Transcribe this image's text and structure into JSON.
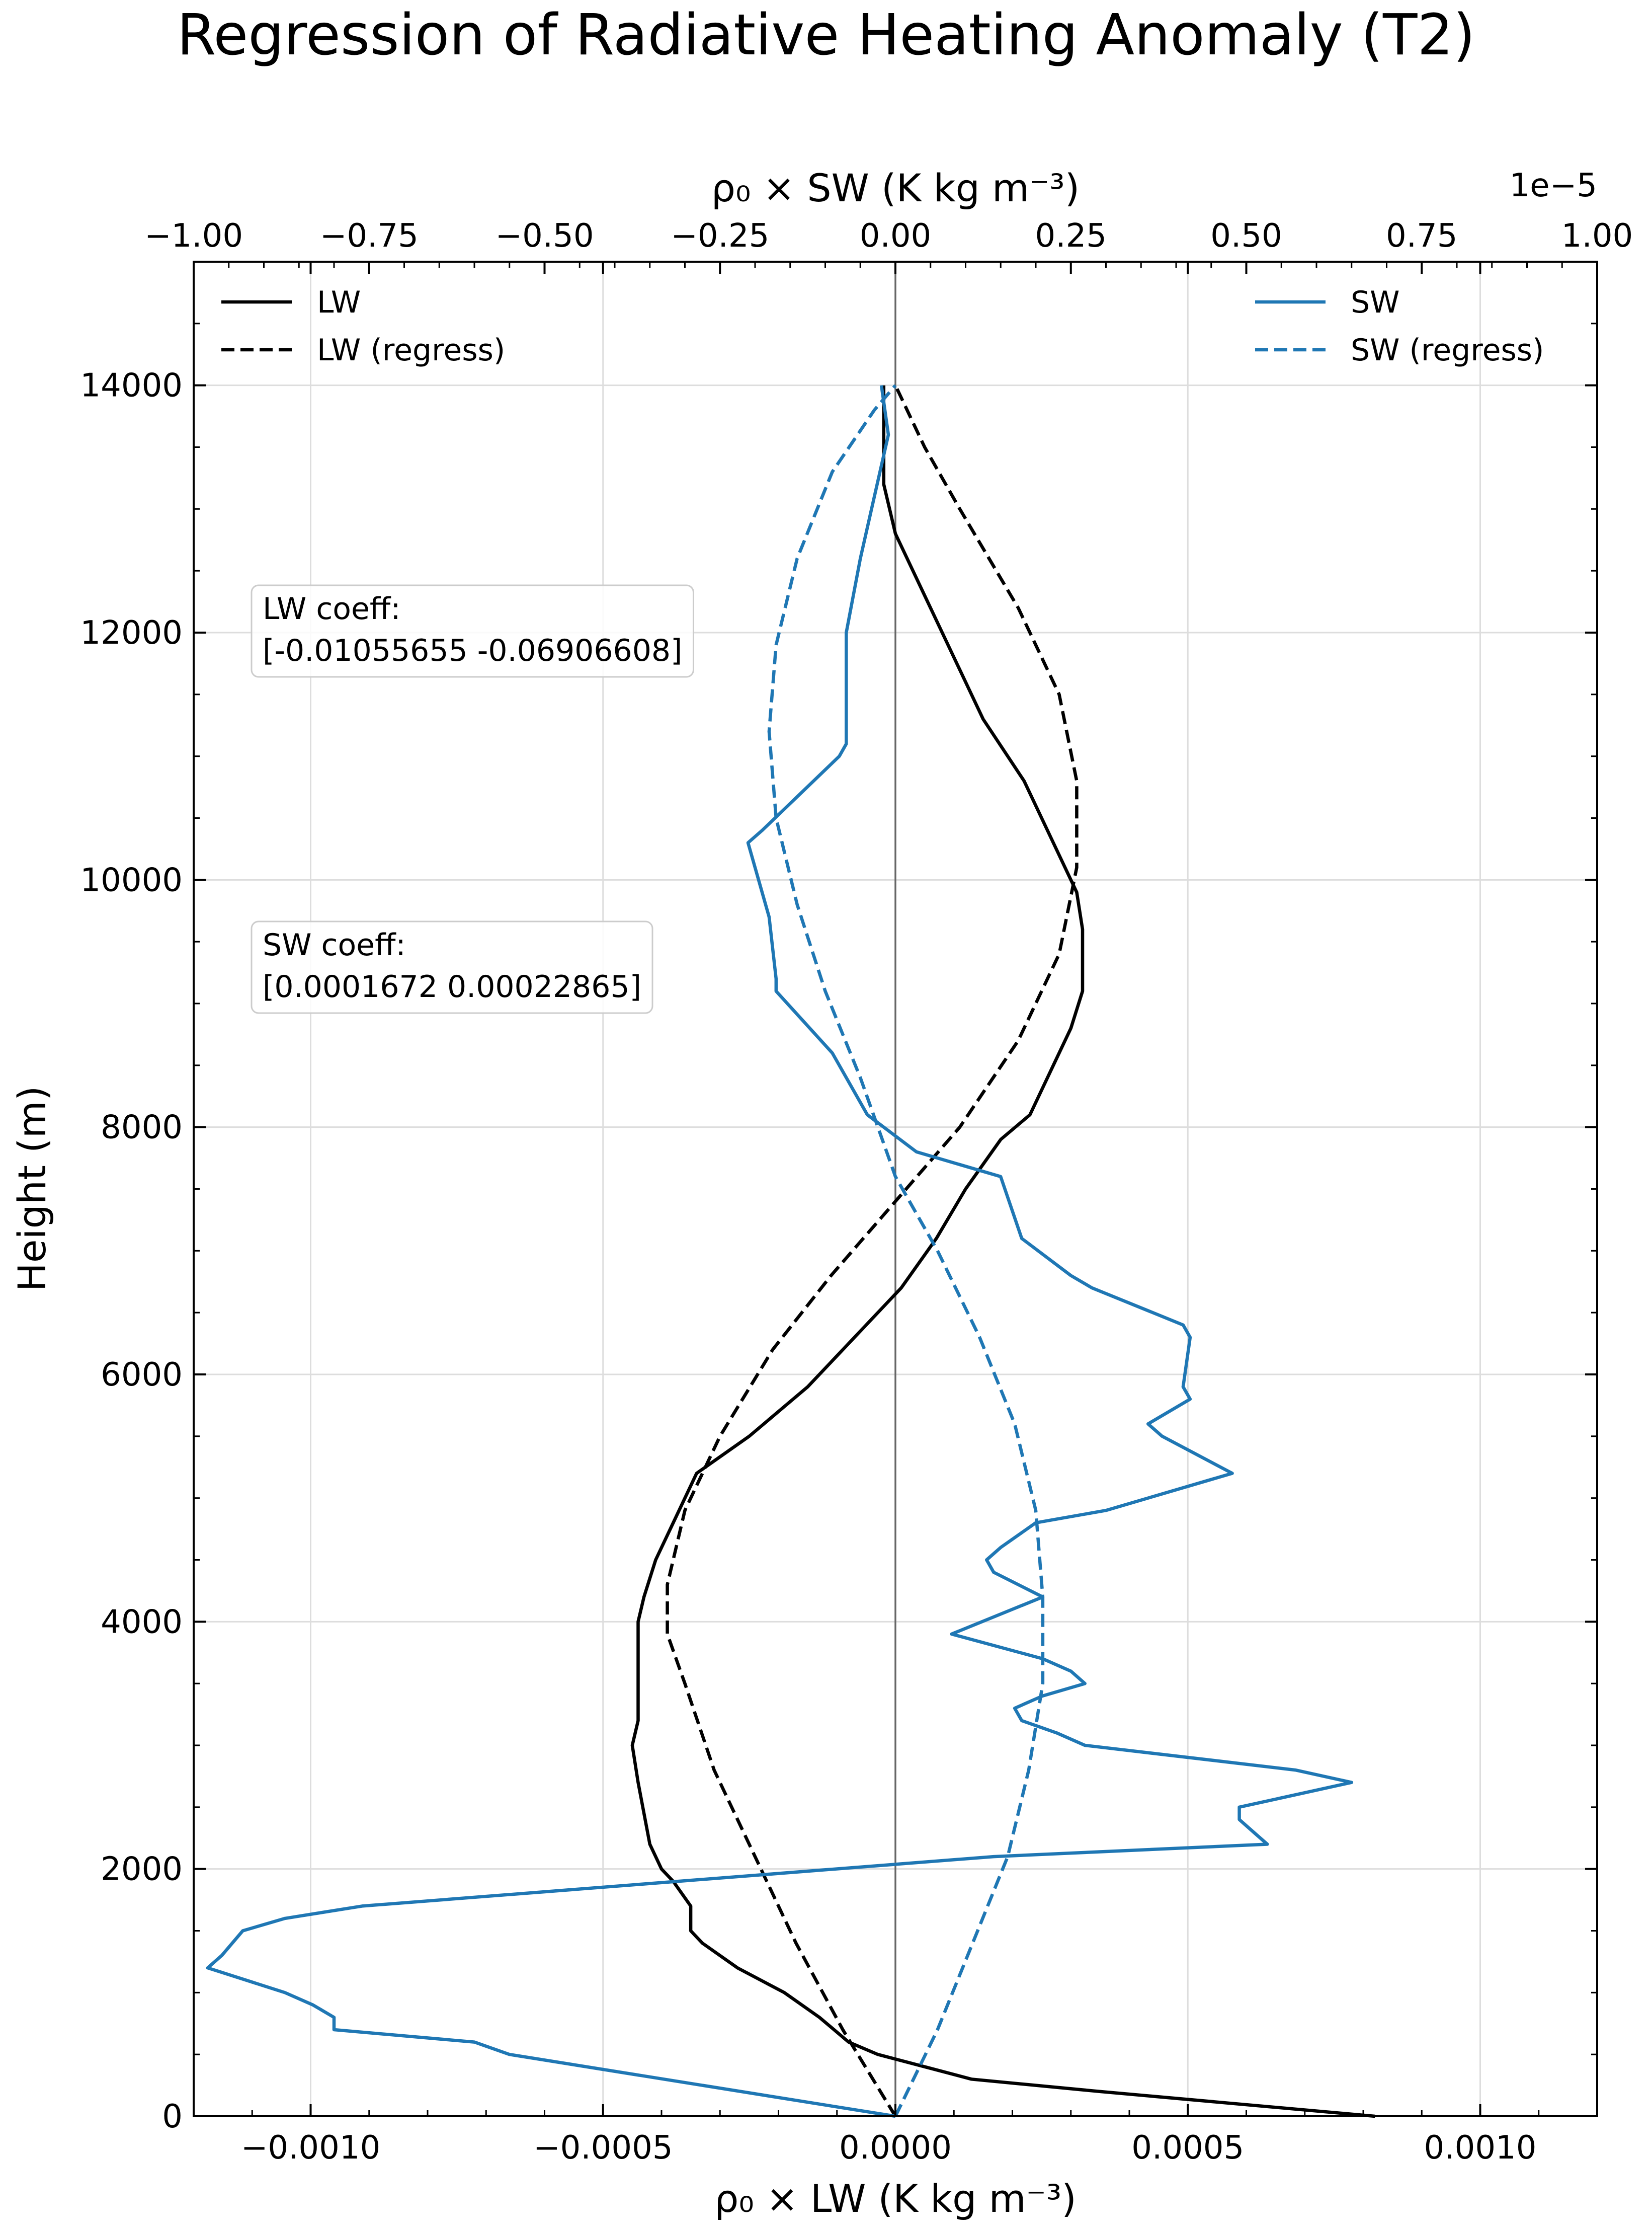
{
  "chart_data": {
    "type": "line",
    "title": "Regression of Radiative Heating Anomaly (T2)",
    "ylabel": "Height (m)",
    "xlabel_bottom": "ρ₀ × LW (K kg m⁻³)",
    "xlabel_top": "ρ₀ × SW (K kg m⁻³)",
    "top_axis_offset": "1e−5",
    "ylim": [
      0,
      15000
    ],
    "xlim_bottom": [
      -0.0012,
      0.0012
    ],
    "xlim_top": [
      -1.0,
      1.0
    ],
    "grid": true,
    "yticks": [
      0,
      2000,
      4000,
      6000,
      8000,
      10000,
      12000,
      14000
    ],
    "ytick_labels": [
      "0",
      "2000",
      "4000",
      "6000",
      "8000",
      "10000",
      "12000",
      "14000"
    ],
    "xticks_bottom": [
      -0.001,
      -0.0005,
      0.0,
      0.0005,
      0.001
    ],
    "xtick_labels_bottom": [
      "−0.0010",
      "−0.0005",
      "0.0000",
      "0.0005",
      "0.0010"
    ],
    "xticks_top": [
      -1.0,
      -0.75,
      -0.5,
      -0.25,
      0.0,
      0.25,
      0.5,
      0.75,
      1.0
    ],
    "xtick_labels_top": [
      "−1.00",
      "−0.75",
      "−0.50",
      "−0.25",
      "0.00",
      "0.25",
      "0.50",
      "0.75",
      "1.00"
    ],
    "legend_left": {
      "placement": "top-left",
      "entries": [
        {
          "label": "LW",
          "color": "#000000",
          "dash": "solid"
        },
        {
          "label": "LW (regress)",
          "color": "#000000",
          "dash": "dashed"
        }
      ]
    },
    "legend_right": {
      "placement": "top-right",
      "entries": [
        {
          "label": "SW",
          "color": "#1f77b4",
          "dash": "solid"
        },
        {
          "label": "SW (regress)",
          "color": "#1f77b4",
          "dash": "dashed"
        }
      ]
    },
    "annotations": [
      {
        "line1": "LW coeff:",
        "line2": "[-0.01055655 -0.06906608]"
      },
      {
        "line1": "SW coeff:",
        "line2": "[0.0001672  0.00022865]"
      }
    ],
    "series": [
      {
        "name": "LW",
        "axis": "bottom",
        "color": "#000000",
        "dash": "solid",
        "x": [
          0.00082,
          0.00035,
          0.00013,
          5e-05,
          -3e-05,
          -8e-05,
          -0.00013,
          -0.00019,
          -0.00027,
          -0.00033,
          -0.00035,
          -0.00035,
          -0.00038,
          -0.0004,
          -0.00042,
          -0.00044,
          -0.00045,
          -0.00044,
          -0.00044,
          -0.00044,
          -0.00044,
          -0.00043,
          -0.00041,
          -0.00038,
          -0.00034,
          -0.00025,
          -0.00015,
          -7e-05,
          1e-05,
          7e-05,
          0.00012,
          0.00018,
          0.00023,
          0.00027,
          0.0003,
          0.00032,
          0.00032,
          0.00031,
          0.00027,
          0.00022,
          0.00015,
          0.00011,
          5e-05,
          0.0,
          -2e-05,
          -2e-05
        ],
        "y": [
          0,
          200,
          300,
          400,
          500,
          600,
          800,
          1000,
          1200,
          1400,
          1500,
          1700,
          1900,
          2000,
          2200,
          2700,
          3000,
          3200,
          3400,
          3600,
          4000,
          4200,
          4500,
          4800,
          5200,
          5500,
          5900,
          6300,
          6700,
          7100,
          7500,
          7900,
          8100,
          8500,
          8800,
          9100,
          9600,
          9900,
          10300,
          10800,
          11300,
          11700,
          12300,
          12800,
          13200,
          14000
        ]
      },
      {
        "name": "LW (regress)",
        "axis": "bottom",
        "color": "#000000",
        "dash": "dashed",
        "x": [
          0.0,
          -9e-05,
          -0.00017,
          -0.00024,
          -0.00031,
          -0.00036,
          -0.00039,
          -0.00039,
          -0.00036,
          -0.0003,
          -0.00021,
          -0.00011,
          0.0,
          0.00011,
          0.00021,
          0.00028,
          0.00031,
          0.00031,
          0.00028,
          0.00021,
          0.00011,
          5e-05,
          0.0
        ],
        "y": [
          0,
          700,
          1400,
          2100,
          2800,
          3500,
          3900,
          4300,
          4900,
          5500,
          6200,
          6800,
          7400,
          8000,
          8700,
          9400,
          10100,
          10800,
          11500,
          12200,
          13000,
          13500,
          14000
        ]
      },
      {
        "name": "SW",
        "axis": "top",
        "color": "#1f77b4",
        "dash": "solid",
        "x": [
          0.0,
          -0.55,
          -0.6,
          -0.8,
          -0.8,
          -0.83,
          -0.87,
          -0.98,
          -0.96,
          -0.93,
          -0.87,
          -0.76,
          0.14,
          0.53,
          0.51,
          0.49,
          0.49,
          0.65,
          0.57,
          0.27,
          0.23,
          0.18,
          0.17,
          0.21,
          0.27,
          0.25,
          0.21,
          0.08,
          0.21,
          0.14,
          0.13,
          0.15,
          0.2,
          0.3,
          0.48,
          0.38,
          0.36,
          0.42,
          0.41,
          0.42,
          0.41,
          0.28,
          0.25,
          0.18,
          0.15,
          0.03,
          -0.04,
          -0.09,
          -0.17,
          -0.17,
          -0.18,
          -0.21,
          -0.19,
          -0.08,
          -0.07,
          -0.07,
          -0.07,
          -0.05,
          -0.03,
          -0.01,
          -0.02
        ],
        "y": [
          0,
          500,
          600,
          700,
          800,
          900,
          1000,
          1200,
          1300,
          1500,
          1600,
          1700,
          2100,
          2200,
          2300,
          2400,
          2500,
          2700,
          2800,
          3000,
          3100,
          3200,
          3300,
          3400,
          3500,
          3600,
          3700,
          3900,
          4200,
          4400,
          4500,
          4600,
          4800,
          4900,
          5200,
          5500,
          5600,
          5800,
          5900,
          6300,
          6400,
          6700,
          6800,
          7100,
          7600,
          7800,
          8100,
          8600,
          9100,
          9200,
          9700,
          10300,
          10400,
          11000,
          11100,
          11700,
          12000,
          12600,
          13100,
          13600,
          14000
        ]
      },
      {
        "name": "SW (regress)",
        "axis": "top",
        "color": "#1f77b4",
        "dash": "dashed",
        "x": [
          0.0,
          0.06,
          0.11,
          0.16,
          0.19,
          0.21,
          0.21,
          0.2,
          0.17,
          0.12,
          0.06,
          0.0,
          -0.05,
          -0.1,
          -0.14,
          -0.17,
          -0.18,
          -0.17,
          -0.14,
          -0.09,
          -0.03,
          0.0
        ],
        "y": [
          0,
          700,
          1400,
          2100,
          2800,
          3500,
          4200,
          4900,
          5600,
          6300,
          7000,
          7600,
          8400,
          9100,
          9800,
          10500,
          11200,
          11900,
          12600,
          13300,
          13800,
          14000
        ]
      }
    ]
  }
}
